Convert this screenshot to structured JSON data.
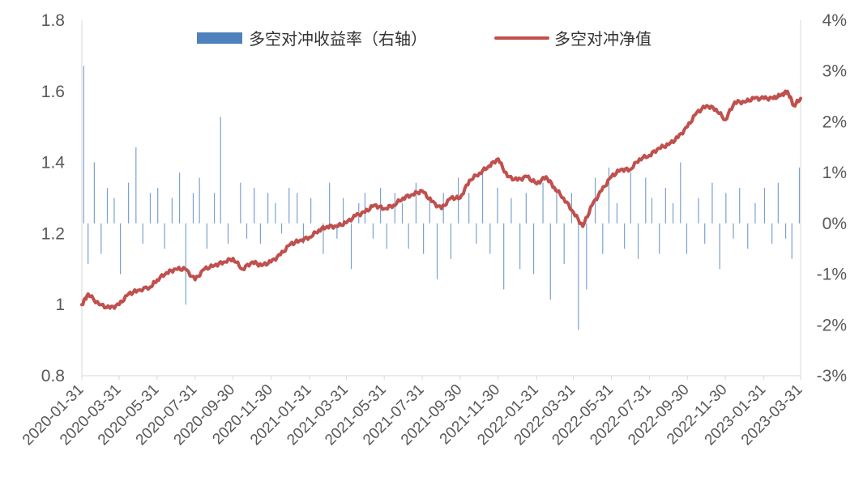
{
  "colors": {
    "bars": "#4f81bd",
    "line": "#c0504d",
    "axis": "#d9d9d9",
    "text": "#595959"
  },
  "chart_data": {
    "type": "bar+line",
    "title": "",
    "xlabel": "",
    "ylabel_left": "",
    "ylabel_right": "",
    "legend": [
      "多空对冲收益率（右轴）",
      "多空对冲净值"
    ],
    "legend_placement": "top-center",
    "grid": false,
    "x_range": [
      "2020-01-31",
      "2023-03-31"
    ],
    "xtick_labels": [
      "2020-01-31",
      "2020-03-31",
      "2020-05-31",
      "2020-07-31",
      "2020-09-30",
      "2020-11-30",
      "2021-01-31",
      "2021-03-31",
      "2021-05-31",
      "2021-07-31",
      "2021-09-30",
      "2021-11-30",
      "2022-01-31",
      "2022-03-31",
      "2022-05-31",
      "2022-07-31",
      "2022-09-30",
      "2022-11-30",
      "2023-01-31",
      "2023-03-31"
    ],
    "ylim_left": [
      0.8,
      1.8
    ],
    "ytick_labels_left": [
      "0.8",
      "1",
      "1.2",
      "1.4",
      "1.6",
      "1.8"
    ],
    "ylim_right": [
      -0.03,
      0.04
    ],
    "ytick_labels_right": [
      "-3%",
      "-2%",
      "-1%",
      "0%",
      "1%",
      "2%",
      "3%",
      "4%"
    ],
    "series": [
      {
        "name": "多空对冲净值",
        "type": "line",
        "axis": "left",
        "x": [
          "2020-01-31",
          "2020-02-10",
          "2020-02-28",
          "2020-03-16",
          "2020-03-31",
          "2020-04-15",
          "2020-04-30",
          "2020-05-20",
          "2020-05-31",
          "2020-06-15",
          "2020-06-30",
          "2020-07-15",
          "2020-07-31",
          "2020-08-15",
          "2020-08-31",
          "2020-09-15",
          "2020-09-30",
          "2020-10-15",
          "2020-10-31",
          "2020-11-15",
          "2020-11-30",
          "2020-12-15",
          "2020-12-31",
          "2021-01-15",
          "2021-01-31",
          "2021-02-15",
          "2021-02-28",
          "2021-03-15",
          "2021-03-31",
          "2021-04-15",
          "2021-04-30",
          "2021-05-15",
          "2021-05-31",
          "2021-06-15",
          "2021-06-30",
          "2021-07-15",
          "2021-07-31",
          "2021-08-15",
          "2021-08-31",
          "2021-09-15",
          "2021-09-30",
          "2021-10-15",
          "2021-10-31",
          "2021-11-15",
          "2021-11-30",
          "2021-12-15",
          "2021-12-31",
          "2022-01-15",
          "2022-01-31",
          "2022-02-15",
          "2022-02-28",
          "2022-03-15",
          "2022-03-31",
          "2022-04-15",
          "2022-04-30",
          "2022-05-15",
          "2022-05-31",
          "2022-06-15",
          "2022-06-30",
          "2022-07-15",
          "2022-07-31",
          "2022-08-15",
          "2022-08-31",
          "2022-09-15",
          "2022-09-30",
          "2022-10-15",
          "2022-10-31",
          "2022-11-15",
          "2022-11-30",
          "2022-12-15",
          "2022-12-31",
          "2023-01-15",
          "2023-01-31",
          "2023-02-15",
          "2023-02-28",
          "2023-03-10",
          "2023-03-20",
          "2023-03-31"
        ],
        "values": [
          1.0,
          1.03,
          1.0,
          0.99,
          1.0,
          1.03,
          1.04,
          1.05,
          1.07,
          1.09,
          1.1,
          1.1,
          1.07,
          1.1,
          1.11,
          1.12,
          1.13,
          1.1,
          1.12,
          1.11,
          1.12,
          1.14,
          1.17,
          1.18,
          1.19,
          1.21,
          1.22,
          1.22,
          1.23,
          1.25,
          1.26,
          1.28,
          1.27,
          1.28,
          1.3,
          1.31,
          1.32,
          1.29,
          1.27,
          1.3,
          1.3,
          1.35,
          1.37,
          1.39,
          1.41,
          1.36,
          1.35,
          1.36,
          1.34,
          1.36,
          1.33,
          1.3,
          1.26,
          1.22,
          1.28,
          1.32,
          1.36,
          1.38,
          1.38,
          1.41,
          1.42,
          1.44,
          1.45,
          1.47,
          1.5,
          1.54,
          1.56,
          1.55,
          1.52,
          1.57,
          1.57,
          1.58,
          1.58,
          1.58,
          1.59,
          1.6,
          1.56,
          1.58
        ]
      },
      {
        "name": "多空对冲收益率（右轴）",
        "type": "bar",
        "axis": "right",
        "x": [
          "2020-02-03",
          "2020-02-10",
          "2020-02-20",
          "2020-03-02",
          "2020-03-12",
          "2020-03-23",
          "2020-04-02",
          "2020-04-15",
          "2020-04-27",
          "2020-05-08",
          "2020-05-20",
          "2020-06-01",
          "2020-06-12",
          "2020-06-24",
          "2020-07-06",
          "2020-07-16",
          "2020-07-28",
          "2020-08-07",
          "2020-08-19",
          "2020-08-31",
          "2020-09-10",
          "2020-09-22",
          "2020-10-12",
          "2020-10-22",
          "2020-11-03",
          "2020-11-13",
          "2020-11-25",
          "2020-12-07",
          "2020-12-17",
          "2020-12-29",
          "2021-01-11",
          "2021-01-21",
          "2021-02-02",
          "2021-02-22",
          "2021-03-04",
          "2021-03-16",
          "2021-03-26",
          "2021-04-08",
          "2021-04-20",
          "2021-04-30",
          "2021-05-13",
          "2021-05-25",
          "2021-06-04",
          "2021-06-17",
          "2021-06-29",
          "2021-07-09",
          "2021-07-21",
          "2021-08-02",
          "2021-08-12",
          "2021-08-24",
          "2021-09-03",
          "2021-09-15",
          "2021-09-27",
          "2021-10-14",
          "2021-10-26",
          "2021-11-05",
          "2021-11-17",
          "2021-11-29",
          "2021-12-09",
          "2021-12-21",
          "2022-01-04",
          "2022-01-14",
          "2022-01-26",
          "2022-02-10",
          "2022-02-22",
          "2022-03-04",
          "2022-03-16",
          "2022-03-28",
          "2022-04-08",
          "2022-04-21",
          "2022-05-05",
          "2022-05-17",
          "2022-05-27",
          "2022-06-09",
          "2022-06-21",
          "2022-07-01",
          "2022-07-13",
          "2022-07-25",
          "2022-08-04",
          "2022-08-16",
          "2022-08-26",
          "2022-09-07",
          "2022-09-19",
          "2022-09-29",
          "2022-10-18",
          "2022-10-28",
          "2022-11-09",
          "2022-11-21",
          "2022-12-01",
          "2022-12-13",
          "2022-12-23",
          "2023-01-05",
          "2023-01-17",
          "2023-02-01",
          "2023-02-13",
          "2023-02-23",
          "2023-03-07",
          "2023-03-17",
          "2023-03-29"
        ],
        "values": [
          0.031,
          -0.008,
          0.012,
          -0.006,
          0.007,
          0.005,
          -0.01,
          0.008,
          0.015,
          -0.004,
          0.006,
          0.007,
          -0.005,
          0.005,
          0.01,
          -0.016,
          0.006,
          0.009,
          -0.005,
          0.006,
          0.021,
          -0.004,
          0.008,
          -0.003,
          0.007,
          -0.004,
          0.006,
          0.004,
          -0.002,
          0.007,
          0.006,
          -0.004,
          0.005,
          -0.006,
          0.008,
          -0.003,
          0.005,
          -0.009,
          0.004,
          0.006,
          -0.003,
          0.007,
          -0.005,
          0.006,
          0.004,
          -0.005,
          0.008,
          -0.006,
          0.005,
          -0.011,
          0.006,
          -0.007,
          0.009,
          0.006,
          -0.004,
          0.01,
          -0.006,
          0.007,
          -0.013,
          0.005,
          -0.009,
          0.006,
          -0.01,
          0.008,
          -0.015,
          0.007,
          -0.008,
          0.006,
          -0.021,
          -0.013,
          0.009,
          -0.006,
          0.011,
          0.004,
          -0.005,
          0.01,
          -0.007,
          0.009,
          0.005,
          -0.006,
          0.007,
          0.004,
          0.012,
          -0.006,
          0.005,
          -0.004,
          0.008,
          -0.009,
          0.006,
          -0.003,
          0.007,
          -0.005,
          0.004,
          0.007,
          -0.004,
          0.008,
          -0.003,
          -0.007,
          0.011
        ]
      }
    ]
  }
}
